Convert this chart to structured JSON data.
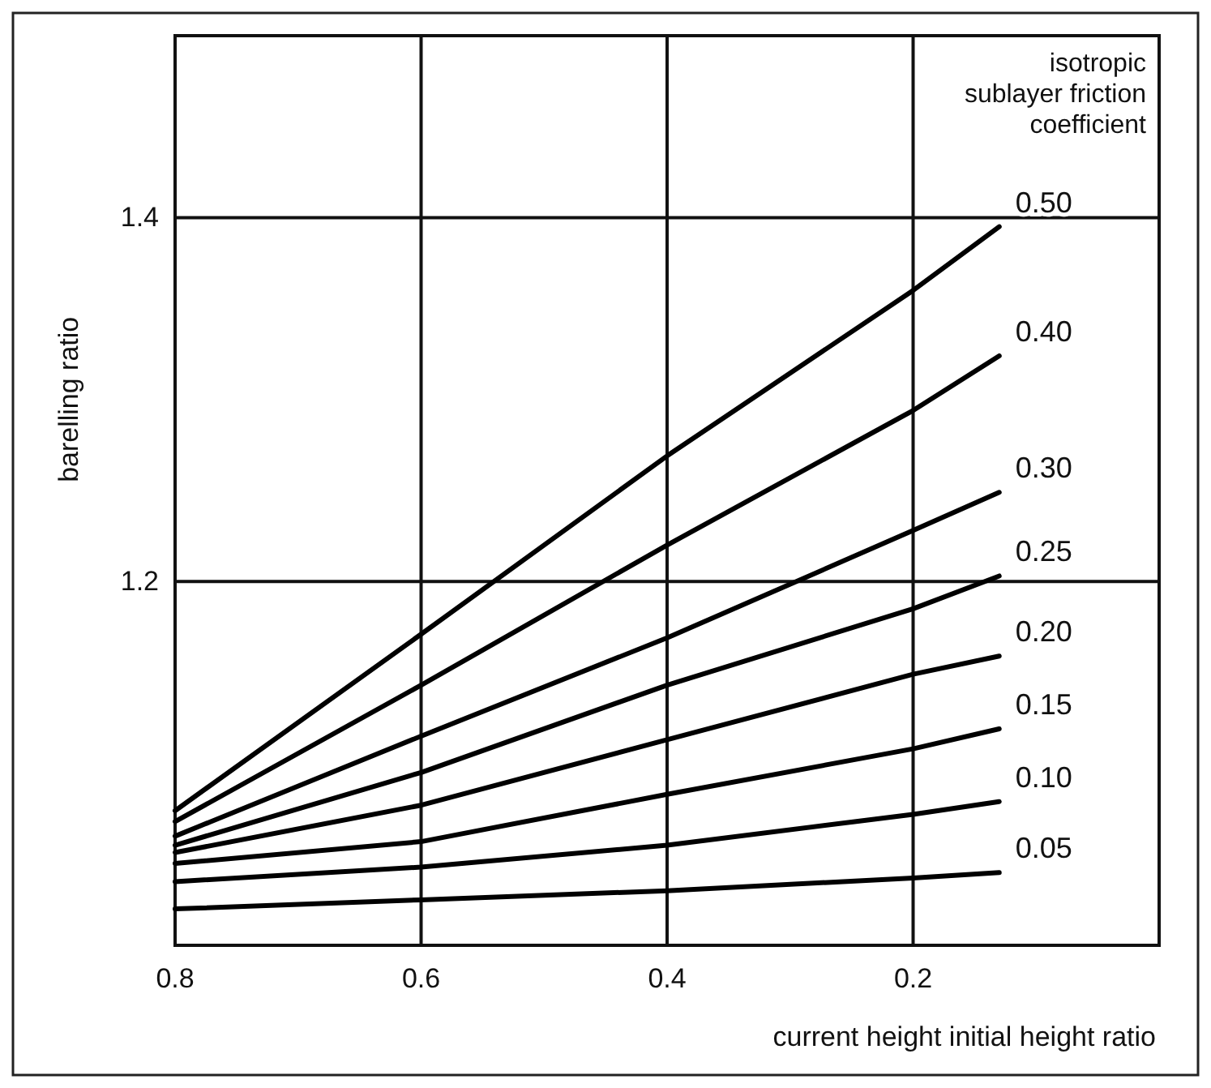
{
  "chart_data": {
    "type": "line",
    "xlabel": "current height initial height ratio",
    "ylabel": "barelling ratio",
    "legend_title": "isotropic\nsublayer friction\ncoefficient",
    "x": [
      0.8,
      0.6,
      0.4,
      0.2,
      0.13
    ],
    "xlim": [
      0.8,
      0.0
    ],
    "xticks": [
      0.8,
      0.6,
      0.4,
      0.2
    ],
    "ylim": [
      1.0,
      1.5
    ],
    "yticks": [
      1.2,
      1.4
    ],
    "grid": true,
    "legend": false,
    "marker": "none",
    "line_style": "solid",
    "series": [
      {
        "name": "0.50",
        "color": "#000000",
        "values": [
          1.074,
          1.171,
          1.269,
          1.36,
          1.395
        ]
      },
      {
        "name": "0.40",
        "color": "#000000",
        "values": [
          1.068,
          1.143,
          1.22,
          1.294,
          1.324
        ]
      },
      {
        "name": "0.30",
        "color": "#000000",
        "values": [
          1.06,
          1.115,
          1.169,
          1.228,
          1.249
        ]
      },
      {
        "name": "0.25",
        "color": "#000000",
        "values": [
          1.055,
          1.095,
          1.143,
          1.185,
          1.203
        ]
      },
      {
        "name": "0.20",
        "color": "#000000",
        "values": [
          1.051,
          1.077,
          1.113,
          1.149,
          1.159
        ]
      },
      {
        "name": "0.15",
        "color": "#000000",
        "values": [
          1.045,
          1.057,
          1.083,
          1.108,
          1.119
        ]
      },
      {
        "name": "0.10",
        "color": "#000000",
        "values": [
          1.035,
          1.043,
          1.055,
          1.072,
          1.079
        ]
      },
      {
        "name": "0.05",
        "color": "#000000",
        "values": [
          1.02,
          1.025,
          1.03,
          1.037,
          1.04
        ]
      }
    ]
  }
}
